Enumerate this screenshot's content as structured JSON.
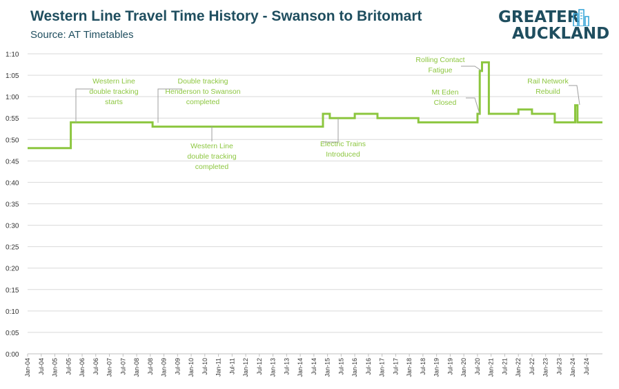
{
  "title": "Western Line Travel Time History - Swanson to Britomart",
  "subtitle": "Source: AT Timetables",
  "logo": {
    "line1": "GREATER",
    "line2": "AUCKLAND",
    "icon": "city-skyline-icon"
  },
  "colors": {
    "line": "#8cc63f",
    "title": "#1f4e5f",
    "grid": "#d9d9d9",
    "annotation": "#8cc63f"
  },
  "chart_data": {
    "type": "line",
    "step": true,
    "y_unit": "hour:minute",
    "ylim": [
      0,
      70
    ],
    "yticks": [
      {
        "value": 0,
        "label": "0:00"
      },
      {
        "value": 5,
        "label": "0:05"
      },
      {
        "value": 10,
        "label": "0:10"
      },
      {
        "value": 15,
        "label": "0:15"
      },
      {
        "value": 20,
        "label": "0:20"
      },
      {
        "value": 25,
        "label": "0:25"
      },
      {
        "value": 30,
        "label": "0:30"
      },
      {
        "value": 35,
        "label": "0:35"
      },
      {
        "value": 40,
        "label": "0:40"
      },
      {
        "value": 45,
        "label": "0:45"
      },
      {
        "value": 50,
        "label": "0:50"
      },
      {
        "value": 55,
        "label": "0:55"
      },
      {
        "value": 60,
        "label": "1:00"
      },
      {
        "value": 65,
        "label": "1:05"
      },
      {
        "value": 70,
        "label": "1:10"
      }
    ],
    "xlim": [
      "2004-01",
      "2025-02"
    ],
    "xticks": [
      {
        "value": "2004-01",
        "label": "Jan-04"
      },
      {
        "value": "2004-07",
        "label": "Jul-04"
      },
      {
        "value": "2005-01",
        "label": "Jan-05"
      },
      {
        "value": "2005-07",
        "label": "Jul-05"
      },
      {
        "value": "2006-01",
        "label": "Jan-06"
      },
      {
        "value": "2006-07",
        "label": "Jul-06"
      },
      {
        "value": "2007-01",
        "label": "Jan-07"
      },
      {
        "value": "2007-07",
        "label": "Jul-07"
      },
      {
        "value": "2008-01",
        "label": "Jan-08"
      },
      {
        "value": "2008-07",
        "label": "Jul-08"
      },
      {
        "value": "2009-01",
        "label": "Jan-09"
      },
      {
        "value": "2009-07",
        "label": "Jul-09"
      },
      {
        "value": "2010-01",
        "label": "Jan-10"
      },
      {
        "value": "2010-07",
        "label": "Jul-10"
      },
      {
        "value": "2011-01",
        "label": "Jan-11"
      },
      {
        "value": "2011-07",
        "label": "Jul-11"
      },
      {
        "value": "2012-01",
        "label": "Jan-12"
      },
      {
        "value": "2012-07",
        "label": "Jul-12"
      },
      {
        "value": "2013-01",
        "label": "Jan-13"
      },
      {
        "value": "2013-07",
        "label": "Jul-13"
      },
      {
        "value": "2014-01",
        "label": "Jan-14"
      },
      {
        "value": "2014-07",
        "label": "Jul-14"
      },
      {
        "value": "2015-01",
        "label": "Jan-15"
      },
      {
        "value": "2015-07",
        "label": "Jul-15"
      },
      {
        "value": "2016-01",
        "label": "Jan-16"
      },
      {
        "value": "2016-07",
        "label": "Jul-16"
      },
      {
        "value": "2017-01",
        "label": "Jan-17"
      },
      {
        "value": "2017-07",
        "label": "Jul-17"
      },
      {
        "value": "2018-01",
        "label": "Jan-18"
      },
      {
        "value": "2018-07",
        "label": "Jul-18"
      },
      {
        "value": "2019-01",
        "label": "Jan-19"
      },
      {
        "value": "2019-07",
        "label": "Jul-19"
      },
      {
        "value": "2020-01",
        "label": "Jan-20"
      },
      {
        "value": "2020-07",
        "label": "Jul-20"
      },
      {
        "value": "2021-01",
        "label": "Jan-21"
      },
      {
        "value": "2021-07",
        "label": "Jul-21"
      },
      {
        "value": "2022-01",
        "label": "Jan-22"
      },
      {
        "value": "2022-07",
        "label": "Jul-22"
      },
      {
        "value": "2023-01",
        "label": "Jan-23"
      },
      {
        "value": "2023-07",
        "label": "Jul-23"
      },
      {
        "value": "2024-01",
        "label": "Jan-24"
      },
      {
        "value": "2024-07",
        "label": "Jul-24"
      }
    ],
    "grid": true,
    "points": [
      {
        "x": "2004-01",
        "y": 48
      },
      {
        "x": "2005-08",
        "y": 48
      },
      {
        "x": "2005-08",
        "y": 54
      },
      {
        "x": "2008-08",
        "y": 54
      },
      {
        "x": "2008-08",
        "y": 53
      },
      {
        "x": "2014-11",
        "y": 53
      },
      {
        "x": "2014-11",
        "y": 56
      },
      {
        "x": "2015-02",
        "y": 56
      },
      {
        "x": "2015-02",
        "y": 55
      },
      {
        "x": "2016-01",
        "y": 55
      },
      {
        "x": "2016-01",
        "y": 56
      },
      {
        "x": "2016-11",
        "y": 56
      },
      {
        "x": "2016-11",
        "y": 55
      },
      {
        "x": "2018-05",
        "y": 55
      },
      {
        "x": "2018-05",
        "y": 54
      },
      {
        "x": "2020-07",
        "y": 54
      },
      {
        "x": "2020-07",
        "y": 56
      },
      {
        "x": "2020-08",
        "y": 56
      },
      {
        "x": "2020-08",
        "y": 66
      },
      {
        "x": "2020-09",
        "y": 66
      },
      {
        "x": "2020-09",
        "y": 68
      },
      {
        "x": "2020-12",
        "y": 68
      },
      {
        "x": "2020-12",
        "y": 56
      },
      {
        "x": "2022-01",
        "y": 56
      },
      {
        "x": "2022-01",
        "y": 57
      },
      {
        "x": "2022-07",
        "y": 57
      },
      {
        "x": "2022-07",
        "y": 56
      },
      {
        "x": "2023-05",
        "y": 56
      },
      {
        "x": "2023-05",
        "y": 54
      },
      {
        "x": "2024-02",
        "y": 54
      },
      {
        "x": "2024-02",
        "y": 58
      },
      {
        "x": "2024-03",
        "y": 58
      },
      {
        "x": "2024-03",
        "y": 54
      },
      {
        "x": "2025-02",
        "y": 54
      }
    ],
    "annotations": [
      {
        "lines": [
          "Western Line",
          "double tracking",
          "starts"
        ],
        "x": "2005-08",
        "y": 54
      },
      {
        "lines": [
          "Double tracking",
          "Henderson to Swanson",
          "completed"
        ],
        "x": "2008-08",
        "y": 54
      },
      {
        "lines": [
          "Western Line",
          "double tracking",
          "completed"
        ],
        "x": "2008-08",
        "y": 53
      },
      {
        "lines": [
          "Electric Trains",
          "Introduced"
        ],
        "x": "2015-02",
        "y": 55
      },
      {
        "lines": [
          "Rolling Contact",
          "Fatigue"
        ],
        "x": "2020-08",
        "y": 66
      },
      {
        "lines": [
          "Mt Eden",
          "Closed"
        ],
        "x": "2020-07",
        "y": 56
      },
      {
        "lines": [
          "Rail Network",
          "Rebuild"
        ],
        "x": "2024-02",
        "y": 58
      }
    ]
  }
}
